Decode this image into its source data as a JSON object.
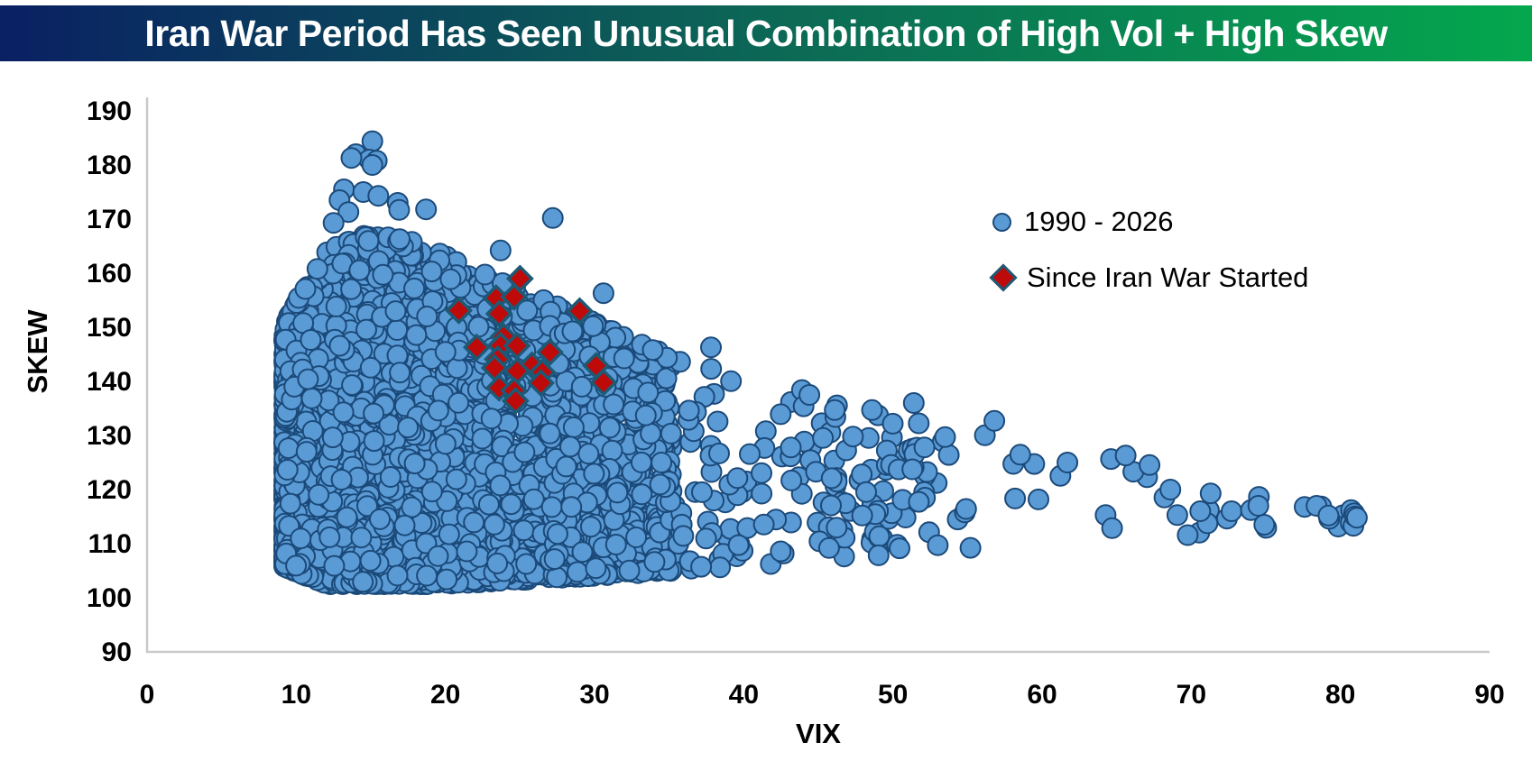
{
  "banner": {
    "title": "Iran War Period Has Seen Unusual Combination of High Vol + High Skew",
    "gradient_left": "#0a2063",
    "gradient_mid": "#0c6a55",
    "gradient_right": "#04a74e",
    "text_color": "#ffffff"
  },
  "chart_data": {
    "type": "scatter",
    "title": "Iran War Period Has Seen Unusual Combination of High Vol + High Skew",
    "xlabel": "VIX",
    "ylabel": "SKEW",
    "xlim": [
      0,
      90
    ],
    "ylim": [
      90,
      190
    ],
    "x_ticks": [
      0,
      10,
      20,
      30,
      40,
      50,
      60,
      70,
      80,
      90
    ],
    "y_ticks": [
      90,
      100,
      110,
      120,
      130,
      140,
      150,
      160,
      170,
      180,
      190
    ],
    "grid": false,
    "axis_color": "#c9c9c9",
    "tick_color": "#000000",
    "legend": {
      "position": "inside-upper-right"
    },
    "series": [
      {
        "name": "1990 - 2026",
        "marker": "circle",
        "fill": "#5b9bd5",
        "stroke": "#1b4a7a",
        "marker_radius": 11,
        "description": "Dense cloud of daily VIX/SKEW observations 1990-2026: VIX mostly 9-35 with a sparse tail out to ~81; SKEW mostly 102-167, spiking to ~184 near VIX 15; the SKEW range narrows toward 110-120 as VIX rises",
        "distribution": {
          "top_envelope": [
            [
              9,
              150
            ],
            [
              12,
              164
            ],
            [
              14,
              167
            ],
            [
              17,
              167
            ],
            [
              34,
              146
            ],
            [
              60,
              129
            ],
            [
              82,
              116.5
            ]
          ],
          "bottom_envelope": [
            [
              9,
              106
            ],
            [
              12,
              102.5
            ],
            [
              20,
              102.5
            ],
            [
              30,
              104
            ],
            [
              60,
              109.5
            ],
            [
              82,
              113.5
            ]
          ],
          "segments": [
            {
              "count": 4100,
              "vix_base": 9.2,
              "vix_span": 26,
              "vix_pow": 2.05,
              "skew_pow": 1.5
            },
            {
              "count": 260,
              "vix_base": 27,
              "vix_span": 28,
              "vix_pow": 1.6,
              "skew_pow": 1.25
            },
            {
              "count": 55,
              "vix_base": 45,
              "vix_span": 36,
              "vix_pow": 1.4,
              "skew_pow": 1.05
            }
          ]
        },
        "notable_points": [
          [
            15.1,
            184.4
          ],
          [
            14.0,
            182.0
          ],
          [
            14.9,
            181.0
          ],
          [
            15.4,
            180.8
          ],
          [
            13.7,
            181.3
          ],
          [
            15.1,
            180.0
          ],
          [
            13.2,
            175.5
          ],
          [
            14.5,
            175.0
          ],
          [
            15.5,
            174.3
          ],
          [
            16.8,
            173.0
          ],
          [
            12.9,
            173.5
          ],
          [
            13.5,
            171.3
          ],
          [
            12.5,
            169.3
          ],
          [
            16.9,
            171.7
          ],
          [
            18.7,
            171.8
          ],
          [
            27.2,
            170.2
          ],
          [
            23.7,
            164.2
          ],
          [
            30.6,
            156.3
          ],
          [
            29.9,
            150.2
          ],
          [
            37.8,
            146.3
          ],
          [
            33.9,
            145.8
          ],
          [
            44.4,
            137.5
          ],
          [
            46.1,
            134.7
          ],
          [
            51.4,
            136.0
          ],
          [
            56.8,
            132.7
          ],
          [
            53.5,
            129.7
          ],
          [
            61.7,
            125.0
          ],
          [
            65.6,
            126.3
          ],
          [
            68.6,
            120.0
          ],
          [
            71.3,
            119.3
          ],
          [
            70.6,
            116.0
          ],
          [
            72.7,
            116.0
          ],
          [
            74.0,
            116.2
          ],
          [
            74.5,
            117.0
          ],
          [
            74.9,
            113.5
          ],
          [
            77.6,
            116.8
          ],
          [
            78.4,
            117.0
          ],
          [
            79.2,
            115.2
          ],
          [
            81.1,
            114.8
          ]
        ]
      },
      {
        "name": "Since Iran War Started",
        "marker": "diamond",
        "fill": "#bf0a0a",
        "stroke": "#1d5a75",
        "marker_half_width": 13,
        "points": [
          [
            25.0,
            159.0
          ],
          [
            23.4,
            155.4
          ],
          [
            24.6,
            155.6
          ],
          [
            20.9,
            153.1
          ],
          [
            23.6,
            152.5
          ],
          [
            29.0,
            153.0
          ],
          [
            23.9,
            148.3
          ],
          [
            22.1,
            146.3
          ],
          [
            23.7,
            146.6
          ],
          [
            24.8,
            146.6
          ],
          [
            27.0,
            145.4
          ],
          [
            23.5,
            144.1
          ],
          [
            25.8,
            143.0
          ],
          [
            30.1,
            142.9
          ],
          [
            23.3,
            142.5
          ],
          [
            24.8,
            141.9
          ],
          [
            26.5,
            141.7
          ],
          [
            26.4,
            139.7
          ],
          [
            30.6,
            139.8
          ],
          [
            23.6,
            138.8
          ],
          [
            24.6,
            138.3
          ],
          [
            24.7,
            136.4
          ]
        ]
      }
    ]
  }
}
